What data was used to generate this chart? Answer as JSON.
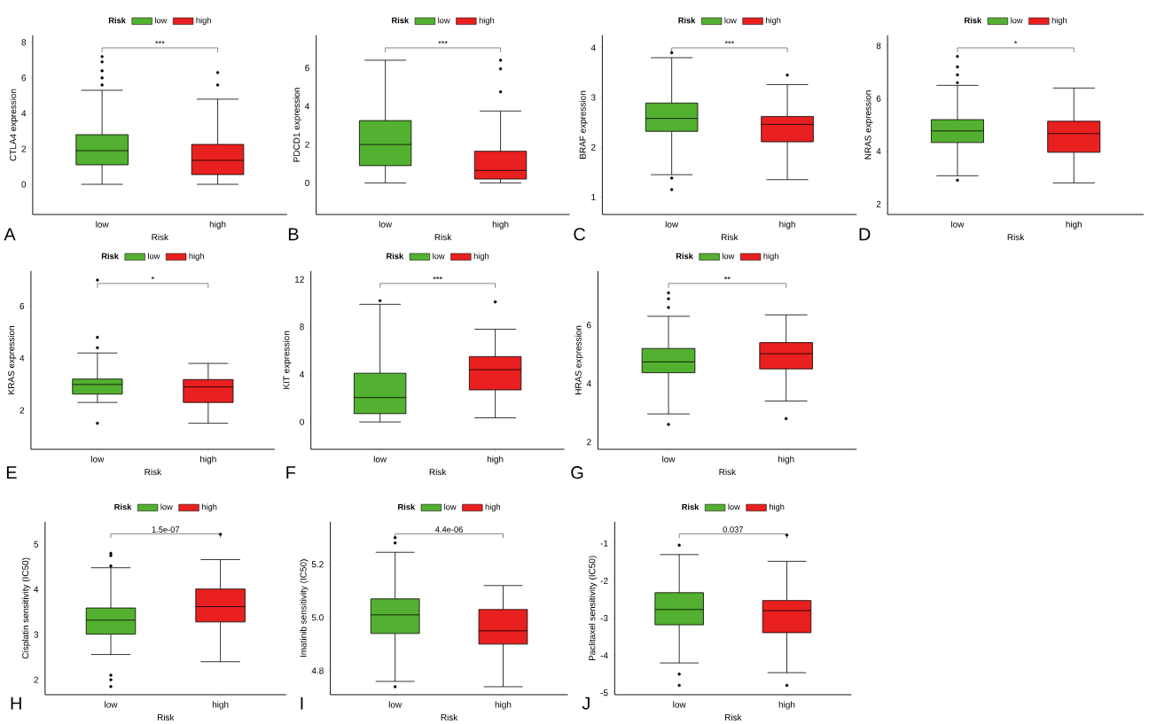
{
  "chart_data": [
    {
      "type": "box",
      "categories": [
        "low",
        "high"
      ],
      "xlabel": "Risk",
      "ylabel": "CTLA4 expression",
      "legend_title": "Risk",
      "legend": "top",
      "ylim": [
        -1.7,
        8.4
      ],
      "yticks": [
        0,
        2,
        4,
        6,
        8
      ],
      "annotations": [
        "***",
        "A"
      ],
      "series": [
        {
          "name": "low",
          "color": "#54b030",
          "boxes": [
            {
              "low": 0,
              "q1": 1.1,
              "median": 1.9,
              "q3": 2.8,
              "high": 5.3,
              "outliers": [
                5.6,
                6.0,
                6.4,
                6.9,
                7.2
              ]
            },
            null
          ]
        },
        {
          "name": "high",
          "color": "#e8201f",
          "boxes": [
            null,
            {
              "low": 0,
              "q1": 0.55,
              "median": 1.35,
              "q3": 2.25,
              "high": 4.8,
              "outliers": [
                5.6,
                6.3
              ]
            }
          ]
        }
      ]
    },
    {
      "type": "box",
      "categories": [
        "low",
        "high"
      ],
      "xlabel": "Risk",
      "ylabel": "PDCD1 expression",
      "legend_title": "Risk",
      "legend": "top",
      "ylim": [
        -1.65,
        7.7
      ],
      "yticks": [
        0,
        2,
        4,
        6
      ],
      "annotations": [
        "***",
        "B"
      ],
      "series": [
        {
          "name": "low",
          "color": "#54b030",
          "boxes": [
            {
              "low": 0,
              "q1": 0.9,
              "median": 2.0,
              "q3": 3.25,
              "high": 6.4
            },
            null
          ]
        },
        {
          "name": "high",
          "color": "#e8201f",
          "boxes": [
            null,
            {
              "low": 0,
              "q1": 0.2,
              "median": 0.65,
              "q3": 1.65,
              "high": 3.75,
              "outliers": [
                4.75,
                5.95,
                6.4
              ]
            }
          ]
        }
      ]
    },
    {
      "type": "box",
      "categories": [
        "low",
        "high"
      ],
      "xlabel": "Risk",
      "ylabel": "BRAF expression",
      "legend_title": "Risk",
      "legend": "top",
      "ylim": [
        0.65,
        4.25
      ],
      "yticks": [
        1,
        2,
        3,
        4
      ],
      "annotations": [
        "***",
        "C"
      ],
      "series": [
        {
          "name": "low",
          "color": "#54b030",
          "boxes": [
            {
              "low": 1.45,
              "q1": 2.32,
              "median": 2.58,
              "q3": 2.89,
              "high": 3.8,
              "outliers": [
                1.38,
                1.15,
                3.9
              ]
            },
            null
          ]
        },
        {
          "name": "high",
          "color": "#e8201f",
          "boxes": [
            null,
            {
              "low": 1.35,
              "q1": 2.11,
              "median": 2.46,
              "q3": 2.62,
              "high": 3.26,
              "outliers": [
                3.45
              ]
            }
          ]
        }
      ]
    },
    {
      "type": "box",
      "categories": [
        "low",
        "high"
      ],
      "xlabel": "Risk",
      "ylabel": "NRAS expression",
      "legend_title": "Risk",
      "legend": "top",
      "ylim": [
        1.6,
        8.4
      ],
      "yticks": [
        2,
        4,
        6,
        8
      ],
      "annotations": [
        "*",
        "D"
      ],
      "series": [
        {
          "name": "low",
          "color": "#54b030",
          "boxes": [
            {
              "low": 3.07,
              "q1": 4.33,
              "median": 4.77,
              "q3": 5.2,
              "high": 6.5,
              "outliers": [
                2.9,
                6.6,
                6.9,
                7.2,
                7.6
              ]
            },
            null
          ]
        },
        {
          "name": "high",
          "color": "#e8201f",
          "boxes": [
            null,
            {
              "low": 2.8,
              "q1": 3.96,
              "median": 4.67,
              "q3": 5.14,
              "high": 6.4
            }
          ]
        }
      ]
    },
    {
      "type": "box",
      "categories": [
        "low",
        "high"
      ],
      "xlabel": "Risk",
      "ylabel": "KRAS expression",
      "legend_title": "Risk",
      "legend": "top",
      "ylim": [
        0.5,
        7.35
      ],
      "yticks": [
        2,
        4,
        6
      ],
      "annotations": [
        "*",
        "E"
      ],
      "series": [
        {
          "name": "low",
          "color": "#54b030",
          "boxes": [
            {
              "low": 2.3,
              "q1": 2.62,
              "median": 2.99,
              "q3": 3.2,
              "high": 4.2,
              "outliers": [
                1.5,
                4.4,
                4.8,
                7.0
              ]
            },
            null
          ]
        },
        {
          "name": "high",
          "color": "#e8201f",
          "boxes": [
            null,
            {
              "low": 1.5,
              "q1": 2.3,
              "median": 2.9,
              "q3": 3.18,
              "high": 3.8
            }
          ]
        }
      ]
    },
    {
      "type": "box",
      "categories": [
        "low",
        "high"
      ],
      "xlabel": "Risk",
      "ylabel": "KIT expression",
      "legend_title": "Risk",
      "legend": "top",
      "ylim": [
        -2.3,
        12.7
      ],
      "yticks": [
        0,
        4,
        8,
        12
      ],
      "annotations": [
        "***",
        "F"
      ],
      "series": [
        {
          "name": "low",
          "color": "#54b030",
          "boxes": [
            {
              "low": 0,
              "q1": 0.7,
              "median": 2.05,
              "q3": 4.1,
              "high": 9.9,
              "outliers": [
                10.2
              ]
            },
            null
          ]
        },
        {
          "name": "high",
          "color": "#e8201f",
          "boxes": [
            null,
            {
              "low": 0.35,
              "q1": 2.7,
              "median": 4.4,
              "q3": 5.5,
              "high": 7.8,
              "outliers": [
                10.1
              ]
            }
          ]
        }
      ]
    },
    {
      "type": "box",
      "categories": [
        "low",
        "high"
      ],
      "xlabel": "Risk",
      "ylabel": "HRAS expression",
      "legend_title": "Risk",
      "legend": "top",
      "ylim": [
        1.75,
        7.85
      ],
      "yticks": [
        2,
        4,
        6
      ],
      "annotations": [
        "**",
        "G"
      ],
      "series": [
        {
          "name": "low",
          "color": "#54b030",
          "boxes": [
            {
              "low": 2.96,
              "q1": 4.37,
              "median": 4.74,
              "q3": 5.2,
              "high": 6.3,
              "outliers": [
                2.6,
                6.6,
                6.9,
                7.1
              ]
            },
            null
          ]
        },
        {
          "name": "high",
          "color": "#e8201f",
          "boxes": [
            null,
            {
              "low": 3.4,
              "q1": 4.5,
              "median": 5.02,
              "q3": 5.4,
              "high": 6.35,
              "outliers": [
                2.8
              ]
            }
          ]
        }
      ]
    },
    {
      "type": "box",
      "categories": [
        "low",
        "high"
      ],
      "xlabel": "Risk",
      "ylabel": "Cisplatin sensitivity (IC50)",
      "legend_title": "Risk",
      "legend": "top",
      "ylim": [
        1.67,
        5.5
      ],
      "yticks": [
        2,
        3,
        4,
        5
      ],
      "annotations": [
        "1.5e-07",
        "H"
      ],
      "series": [
        {
          "name": "low",
          "color": "#54b030",
          "boxes": [
            {
              "low": 2.56,
              "q1": 3.01,
              "median": 3.32,
              "q3": 3.59,
              "high": 4.48,
              "outliers": [
                4.52,
                4.75,
                4.8,
                2.1,
                2.0,
                1.85
              ]
            },
            null
          ]
        },
        {
          "name": "high",
          "color": "#e8201f",
          "boxes": [
            null,
            {
              "low": 2.4,
              "q1": 3.28,
              "median": 3.62,
              "q3": 4.01,
              "high": 4.66,
              "outliers": [
                5.22
              ]
            }
          ]
        }
      ]
    },
    {
      "type": "box",
      "categories": [
        "low",
        "high"
      ],
      "xlabel": "Risk",
      "ylabel": "Imatinib sensitivity (IC50)",
      "legend_title": "Risk",
      "legend": "top",
      "ylim": [
        4.71,
        5.36
      ],
      "yticks": [
        4.8,
        {
          "value": 5.0,
          "label": "5.0"
        },
        5.2
      ],
      "annotations": [
        "4.4e-06",
        "I"
      ],
      "series": [
        {
          "name": "low",
          "color": "#54b030",
          "boxes": [
            {
              "low": 4.76,
              "q1": 4.94,
              "median": 5.01,
              "q3": 5.07,
              "high": 5.245,
              "outliers": [
                5.28,
                5.3,
                4.74
              ]
            },
            null
          ]
        },
        {
          "name": "high",
          "color": "#e8201f",
          "boxes": [
            null,
            {
              "low": 4.74,
              "q1": 4.9,
              "median": 4.95,
              "q3": 5.03,
              "high": 5.12
            }
          ]
        }
      ]
    },
    {
      "type": "box",
      "categories": [
        "low",
        "high"
      ],
      "xlabel": "Risk",
      "ylabel": "Paclitaxel sensitivity (IC50)",
      "legend_title": "Risk",
      "legend": "top",
      "ylim": [
        -5.05,
        -0.42
      ],
      "yticks": [
        -5,
        -4,
        -3,
        -2,
        -1
      ],
      "annotations": [
        "0.037",
        "J"
      ],
      "series": [
        {
          "name": "low",
          "color": "#54b030",
          "boxes": [
            {
              "low": -4.2,
              "q1": -3.18,
              "median": -2.77,
              "q3": -2.32,
              "high": -1.3,
              "outliers": [
                -1.05,
                -4.5,
                -4.8
              ]
            },
            null
          ]
        },
        {
          "name": "high",
          "color": "#e8201f",
          "boxes": [
            null,
            {
              "low": -4.46,
              "q1": -3.39,
              "median": -2.8,
              "q3": -2.53,
              "high": -1.48,
              "outliers": [
                -0.78,
                -4.8
              ]
            }
          ]
        }
      ]
    }
  ]
}
